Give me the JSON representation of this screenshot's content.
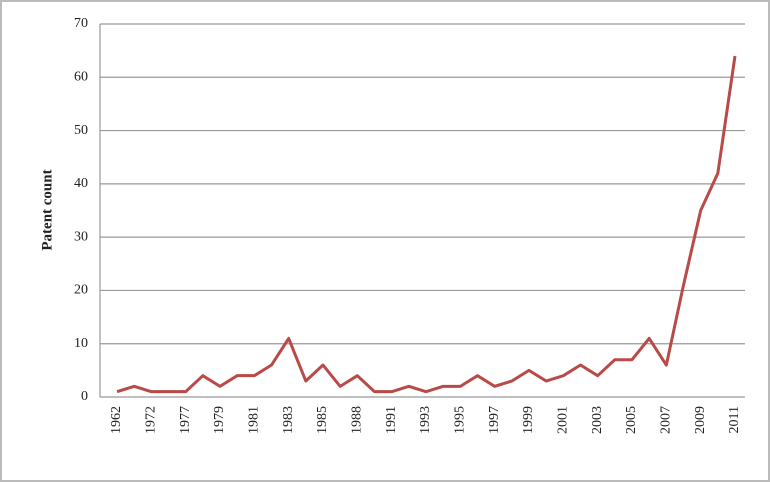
{
  "chart_data": {
    "type": "line",
    "y_label": "Patent count",
    "categories": [
      "1962",
      null,
      "1972",
      null,
      "1977",
      null,
      "1979",
      null,
      "1981",
      null,
      "1983",
      null,
      "1985",
      null,
      "1988",
      null,
      "1991",
      null,
      "1993",
      null,
      "1995",
      null,
      "1997",
      null,
      "1999",
      null,
      "2001",
      null,
      "2003",
      null,
      "2005",
      null,
      "2007",
      null,
      "2009",
      null,
      "2011"
    ],
    "series": [
      {
        "name": "Patent count",
        "color": "#b94a48",
        "values": [
          1,
          2,
          1,
          1,
          1,
          4,
          2,
          4,
          4,
          6,
          11,
          3,
          6,
          2,
          4,
          1,
          1,
          2,
          1,
          2,
          2,
          4,
          2,
          3,
          5,
          3,
          4,
          6,
          4,
          7,
          7,
          11,
          6,
          21,
          35,
          42,
          64
        ]
      }
    ],
    "ylim": [
      0,
      70
    ],
    "yticks": [
      0,
      10,
      20,
      30,
      40,
      50,
      60,
      70
    ],
    "grid": true
  }
}
